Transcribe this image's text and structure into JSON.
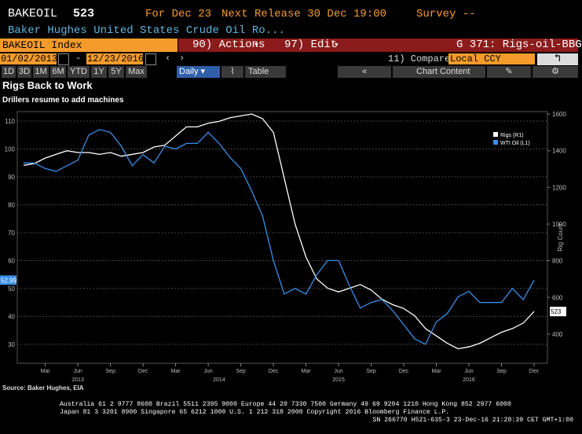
{
  "header": {
    "ticker": "BAKEOIL",
    "last": "523",
    "for_date": "For Dec 23",
    "next_release": "Next Release 30 Dec 19:00",
    "survey": "Survey --",
    "description": "Baker Hughes United States Crude Oil Ro..."
  },
  "toolbar": {
    "security": "BAKEOIL Index",
    "actions": "90) Actions",
    "edit": "97) Edit",
    "template": "G 371: Rigs-oil-BBG",
    "start_date": "01/02/2013",
    "end_date": "12/23/2016",
    "compare": "11) Compare",
    "currency": "Local CCY",
    "periods": [
      "1D",
      "3D",
      "1M",
      "6M",
      "YTD",
      "1Y",
      "5Y",
      "Max"
    ],
    "frequency": "Daily",
    "table": "Table",
    "chart_content": "Chart Content"
  },
  "chart_data": {
    "type": "line",
    "title": "Rigs Back to Work",
    "subtitle": "Drillers resume to add machines",
    "source": "Source: Baker Hughes, EIA",
    "y2label": "Rig Count",
    "x": [
      "2013-01",
      "2013-02",
      "2013-03",
      "2013-04",
      "2013-05",
      "2013-06",
      "2013-07",
      "2013-08",
      "2013-09",
      "2013-10",
      "2013-11",
      "2013-12",
      "2014-01",
      "2014-02",
      "2014-03",
      "2014-04",
      "2014-05",
      "2014-06",
      "2014-07",
      "2014-08",
      "2014-09",
      "2014-10",
      "2014-11",
      "2014-12",
      "2015-01",
      "2015-02",
      "2015-03",
      "2015-04",
      "2015-05",
      "2015-06",
      "2015-07",
      "2015-08",
      "2015-09",
      "2015-10",
      "2015-11",
      "2015-12",
      "2016-01",
      "2016-02",
      "2016-03",
      "2016-04",
      "2016-05",
      "2016-06",
      "2016-07",
      "2016-08",
      "2016-09",
      "2016-10",
      "2016-11",
      "2016-12"
    ],
    "series": [
      {
        "name": "Rigs (R1)",
        "color": "#ffffff",
        "axis": "y2",
        "values": [
          1320,
          1330,
          1360,
          1380,
          1400,
          1390,
          1390,
          1380,
          1390,
          1370,
          1380,
          1390,
          1420,
          1430,
          1480,
          1530,
          1530,
          1550,
          1560,
          1580,
          1590,
          1600,
          1575,
          1500,
          1250,
          1000,
          820,
          700,
          650,
          630,
          650,
          670,
          640,
          590,
          560,
          540,
          500,
          430,
          390,
          350,
          320,
          330,
          350,
          380,
          410,
          430,
          460,
          523
        ]
      },
      {
        "name": "WTI Oil (L1)",
        "color": "#3a8ee6",
        "values": [
          95,
          95,
          93,
          92,
          94,
          96,
          105,
          107,
          106,
          101,
          94,
          98,
          95,
          101,
          100,
          102,
          102,
          106,
          102,
          97,
          93,
          85,
          76,
          60,
          48,
          50,
          48,
          55,
          60,
          60,
          51,
          43,
          45,
          46,
          42,
          37,
          32,
          30,
          38,
          41,
          47,
          49,
          45,
          45,
          45,
          50,
          46,
          52.99
        ]
      }
    ],
    "ylim": [
      23.2,
      113.4
    ],
    "yticks": [
      30,
      40,
      50,
      60,
      70,
      80,
      90,
      100,
      110
    ],
    "y2lim": [
      241,
      1613
    ],
    "y2ticks": [
      400,
      600,
      800,
      1000,
      1200,
      1400,
      1600
    ],
    "xticks": [
      {
        "value": "2013-03",
        "label": "Mar"
      },
      {
        "value": "2013-06",
        "label": "Jun"
      },
      {
        "value": "2013-09",
        "label": "Sep"
      },
      {
        "value": "2013-12",
        "label": "Dec"
      },
      {
        "value": "2014-03",
        "label": "Mar"
      },
      {
        "value": "2014-06",
        "label": "Jun"
      },
      {
        "value": "2014-09",
        "label": "Sep"
      },
      {
        "value": "2014-12",
        "label": "Dec"
      },
      {
        "value": "2015-03",
        "label": "Mar"
      },
      {
        "value": "2015-06",
        "label": "Jun"
      },
      {
        "value": "2015-09",
        "label": "Sep"
      },
      {
        "value": "2015-12",
        "label": "Dec"
      },
      {
        "value": "2016-03",
        "label": "Mar"
      },
      {
        "value": "2016-06",
        "label": "Jun"
      },
      {
        "value": "2016-09",
        "label": "Sep"
      },
      {
        "value": "2016-12",
        "label": "Dec"
      }
    ],
    "year_labels": [
      {
        "value": "2013-06",
        "label": "2013"
      },
      {
        "value": "2014-07",
        "label": "2014"
      },
      {
        "value": "2015-06",
        "label": "2015"
      },
      {
        "value": "2016-06",
        "label": "2016"
      }
    ],
    "grid": true,
    "legend": "upper right"
  },
  "footer": {
    "lines": [
      "Australia 61 2 9777 8600 Brazil 5511 2395 9000 Europe 44 20 7330 7500 Germany 49 69 9204 1210 Hong Kong 852 2977 6000",
      "Japan 81 3 3201 8900      Singapore 65 6212 1000      U.S. 1 212 318 2000      Copyright 2016 Bloomberg Finance L.P.",
      "SN 266770 H521-635-3 23-Dec-16 21:28:39 CET  GMT+1:00"
    ]
  }
}
